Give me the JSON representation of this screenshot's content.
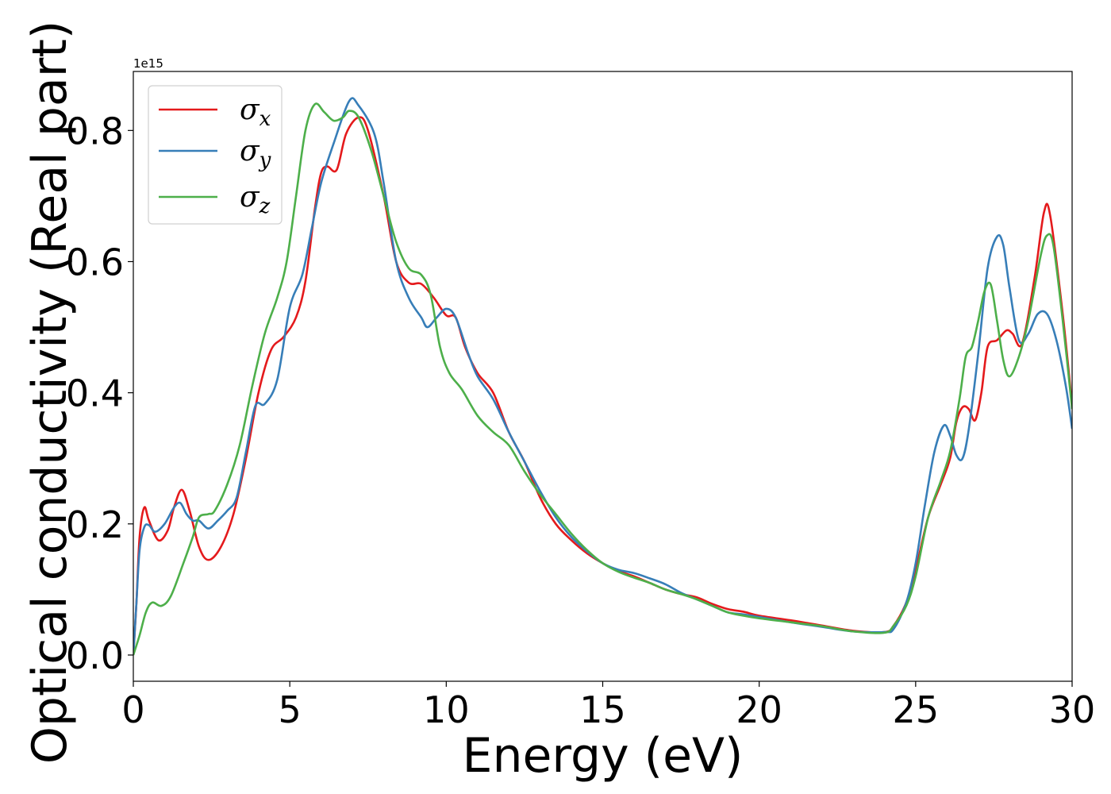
{
  "chart_data": {
    "type": "line",
    "xlabel": "Energy (eV)",
    "ylabel": "Optical conductivity (Real part)",
    "y_offset_label": "1e15",
    "xlim": [
      0,
      30
    ],
    "ylim": [
      -0.04,
      0.89
    ],
    "xticks": [
      0,
      5,
      10,
      15,
      20,
      25,
      30
    ],
    "yticks": [
      0.0,
      0.2,
      0.4,
      0.6,
      0.8
    ],
    "xtick_labels": [
      "0",
      "5",
      "10",
      "15",
      "20",
      "25",
      "30"
    ],
    "ytick_labels": [
      "0.0",
      "0.2",
      "0.4",
      "0.6",
      "0.8"
    ],
    "grid": false,
    "legend_position": "top-left",
    "series": [
      {
        "name": "σx",
        "sub": "x",
        "color": "#e41a1c",
        "points": [
          [
            0,
            0
          ],
          [
            0.1,
            0.08
          ],
          [
            0.2,
            0.18
          ],
          [
            0.35,
            0.225
          ],
          [
            0.5,
            0.205
          ],
          [
            0.8,
            0.175
          ],
          [
            1.1,
            0.19
          ],
          [
            1.3,
            0.225
          ],
          [
            1.55,
            0.252
          ],
          [
            1.8,
            0.22
          ],
          [
            2.1,
            0.165
          ],
          [
            2.4,
            0.145
          ],
          [
            2.8,
            0.165
          ],
          [
            3.2,
            0.215
          ],
          [
            3.6,
            0.3
          ],
          [
            4.0,
            0.4
          ],
          [
            4.4,
            0.465
          ],
          [
            4.8,
            0.485
          ],
          [
            5.2,
            0.515
          ],
          [
            5.5,
            0.57
          ],
          [
            5.8,
            0.68
          ],
          [
            6.0,
            0.735
          ],
          [
            6.2,
            0.745
          ],
          [
            6.5,
            0.74
          ],
          [
            6.8,
            0.795
          ],
          [
            7.2,
            0.82
          ],
          [
            7.5,
            0.8
          ],
          [
            8.0,
            0.7
          ],
          [
            8.4,
            0.6
          ],
          [
            8.8,
            0.568
          ],
          [
            9.2,
            0.566
          ],
          [
            9.6,
            0.545
          ],
          [
            10.0,
            0.518
          ],
          [
            10.3,
            0.515
          ],
          [
            10.6,
            0.47
          ],
          [
            11.0,
            0.43
          ],
          [
            11.5,
            0.4
          ],
          [
            12.0,
            0.34
          ],
          [
            12.5,
            0.295
          ],
          [
            13.0,
            0.24
          ],
          [
            13.5,
            0.2
          ],
          [
            14.0,
            0.175
          ],
          [
            14.5,
            0.155
          ],
          [
            15.0,
            0.14
          ],
          [
            15.5,
            0.128
          ],
          [
            16.0,
            0.12
          ],
          [
            16.5,
            0.11
          ],
          [
            17.0,
            0.1
          ],
          [
            17.5,
            0.093
          ],
          [
            18.0,
            0.088
          ],
          [
            18.5,
            0.078
          ],
          [
            19.0,
            0.07
          ],
          [
            19.5,
            0.066
          ],
          [
            20.0,
            0.06
          ],
          [
            21.0,
            0.053
          ],
          [
            22.0,
            0.045
          ],
          [
            23.0,
            0.037
          ],
          [
            24.0,
            0.035
          ],
          [
            24.3,
            0.045
          ],
          [
            24.7,
            0.08
          ],
          [
            25.0,
            0.13
          ],
          [
            25.4,
            0.21
          ],
          [
            25.8,
            0.26
          ],
          [
            26.1,
            0.3
          ],
          [
            26.3,
            0.355
          ],
          [
            26.5,
            0.378
          ],
          [
            26.7,
            0.375
          ],
          [
            26.9,
            0.358
          ],
          [
            27.1,
            0.4
          ],
          [
            27.3,
            0.47
          ],
          [
            27.6,
            0.48
          ],
          [
            27.9,
            0.495
          ],
          [
            28.1,
            0.49
          ],
          [
            28.4,
            0.475
          ],
          [
            28.8,
            0.575
          ],
          [
            29.1,
            0.675
          ],
          [
            29.3,
            0.67
          ],
          [
            29.7,
            0.52
          ],
          [
            30.0,
            0.38
          ]
        ]
      },
      {
        "name": "σy",
        "sub": "y",
        "color": "#377eb8",
        "points": [
          [
            0,
            0
          ],
          [
            0.1,
            0.08
          ],
          [
            0.2,
            0.16
          ],
          [
            0.35,
            0.195
          ],
          [
            0.5,
            0.198
          ],
          [
            0.7,
            0.188
          ],
          [
            1.0,
            0.2
          ],
          [
            1.3,
            0.225
          ],
          [
            1.5,
            0.232
          ],
          [
            1.7,
            0.215
          ],
          [
            1.9,
            0.205
          ],
          [
            2.1,
            0.205
          ],
          [
            2.4,
            0.193
          ],
          [
            2.7,
            0.205
          ],
          [
            3.0,
            0.22
          ],
          [
            3.3,
            0.24
          ],
          [
            3.6,
            0.31
          ],
          [
            3.9,
            0.38
          ],
          [
            4.2,
            0.383
          ],
          [
            4.6,
            0.42
          ],
          [
            5.0,
            0.53
          ],
          [
            5.4,
            0.58
          ],
          [
            5.7,
            0.65
          ],
          [
            6.0,
            0.72
          ],
          [
            6.4,
            0.78
          ],
          [
            6.9,
            0.845
          ],
          [
            7.2,
            0.838
          ],
          [
            7.7,
            0.795
          ],
          [
            8.0,
            0.72
          ],
          [
            8.4,
            0.6
          ],
          [
            8.8,
            0.545
          ],
          [
            9.2,
            0.515
          ],
          [
            9.4,
            0.5
          ],
          [
            9.7,
            0.515
          ],
          [
            10.0,
            0.528
          ],
          [
            10.3,
            0.515
          ],
          [
            10.7,
            0.46
          ],
          [
            11.0,
            0.425
          ],
          [
            11.5,
            0.39
          ],
          [
            12.0,
            0.34
          ],
          [
            12.5,
            0.295
          ],
          [
            13.0,
            0.25
          ],
          [
            13.5,
            0.21
          ],
          [
            14.0,
            0.18
          ],
          [
            14.5,
            0.158
          ],
          [
            15.0,
            0.14
          ],
          [
            15.5,
            0.13
          ],
          [
            16.0,
            0.125
          ],
          [
            16.5,
            0.117
          ],
          [
            17.0,
            0.108
          ],
          [
            17.5,
            0.095
          ],
          [
            18.0,
            0.085
          ],
          [
            18.5,
            0.075
          ],
          [
            19.0,
            0.065
          ],
          [
            19.5,
            0.062
          ],
          [
            20.0,
            0.058
          ],
          [
            21.0,
            0.05
          ],
          [
            22.0,
            0.043
          ],
          [
            23.0,
            0.036
          ],
          [
            24.0,
            0.035
          ],
          [
            24.3,
            0.04
          ],
          [
            24.7,
            0.08
          ],
          [
            25.0,
            0.14
          ],
          [
            25.3,
            0.23
          ],
          [
            25.6,
            0.31
          ],
          [
            25.9,
            0.35
          ],
          [
            26.1,
            0.335
          ],
          [
            26.3,
            0.305
          ],
          [
            26.5,
            0.3
          ],
          [
            26.7,
            0.345
          ],
          [
            27.0,
            0.46
          ],
          [
            27.3,
            0.59
          ],
          [
            27.6,
            0.638
          ],
          [
            27.8,
            0.625
          ],
          [
            28.0,
            0.56
          ],
          [
            28.3,
            0.48
          ],
          [
            28.6,
            0.49
          ],
          [
            28.9,
            0.52
          ],
          [
            29.2,
            0.52
          ],
          [
            29.5,
            0.48
          ],
          [
            29.8,
            0.41
          ],
          [
            30.0,
            0.345
          ]
        ]
      },
      {
        "name": "σz",
        "sub": "z",
        "color": "#4daf4a",
        "points": [
          [
            0,
            0
          ],
          [
            0.2,
            0.03
          ],
          [
            0.4,
            0.065
          ],
          [
            0.6,
            0.08
          ],
          [
            0.9,
            0.075
          ],
          [
            1.2,
            0.09
          ],
          [
            1.6,
            0.14
          ],
          [
            1.9,
            0.18
          ],
          [
            2.1,
            0.21
          ],
          [
            2.4,
            0.215
          ],
          [
            2.6,
            0.22
          ],
          [
            3.0,
            0.26
          ],
          [
            3.4,
            0.32
          ],
          [
            3.8,
            0.41
          ],
          [
            4.2,
            0.49
          ],
          [
            4.6,
            0.545
          ],
          [
            4.9,
            0.6
          ],
          [
            5.2,
            0.7
          ],
          [
            5.5,
            0.8
          ],
          [
            5.8,
            0.84
          ],
          [
            6.1,
            0.828
          ],
          [
            6.4,
            0.815
          ],
          [
            6.7,
            0.82
          ],
          [
            6.9,
            0.83
          ],
          [
            7.2,
            0.82
          ],
          [
            7.6,
            0.77
          ],
          [
            8.0,
            0.7
          ],
          [
            8.4,
            0.63
          ],
          [
            8.8,
            0.59
          ],
          [
            9.2,
            0.58
          ],
          [
            9.5,
            0.55
          ],
          [
            9.8,
            0.47
          ],
          [
            10.1,
            0.43
          ],
          [
            10.5,
            0.405
          ],
          [
            11.0,
            0.365
          ],
          [
            11.5,
            0.34
          ],
          [
            12.0,
            0.32
          ],
          [
            12.5,
            0.28
          ],
          [
            13.0,
            0.245
          ],
          [
            13.5,
            0.215
          ],
          [
            14.0,
            0.185
          ],
          [
            14.5,
            0.16
          ],
          [
            15.0,
            0.14
          ],
          [
            15.5,
            0.127
          ],
          [
            16.0,
            0.118
          ],
          [
            16.5,
            0.11
          ],
          [
            17.0,
            0.1
          ],
          [
            17.5,
            0.093
          ],
          [
            18.0,
            0.085
          ],
          [
            18.5,
            0.075
          ],
          [
            19.0,
            0.065
          ],
          [
            19.5,
            0.06
          ],
          [
            20.0,
            0.056
          ],
          [
            21.0,
            0.05
          ],
          [
            22.0,
            0.044
          ],
          [
            23.0,
            0.036
          ],
          [
            24.0,
            0.034
          ],
          [
            24.3,
            0.045
          ],
          [
            24.7,
            0.075
          ],
          [
            25.0,
            0.12
          ],
          [
            25.4,
            0.21
          ],
          [
            25.8,
            0.265
          ],
          [
            26.1,
            0.31
          ],
          [
            26.4,
            0.39
          ],
          [
            26.6,
            0.455
          ],
          [
            26.8,
            0.47
          ],
          [
            27.0,
            0.51
          ],
          [
            27.2,
            0.555
          ],
          [
            27.4,
            0.565
          ],
          [
            27.6,
            0.51
          ],
          [
            27.8,
            0.45
          ],
          [
            28.0,
            0.425
          ],
          [
            28.3,
            0.455
          ],
          [
            28.6,
            0.51
          ],
          [
            29.0,
            0.61
          ],
          [
            29.2,
            0.64
          ],
          [
            29.4,
            0.625
          ],
          [
            29.7,
            0.51
          ],
          [
            30.0,
            0.375
          ]
        ]
      }
    ]
  }
}
